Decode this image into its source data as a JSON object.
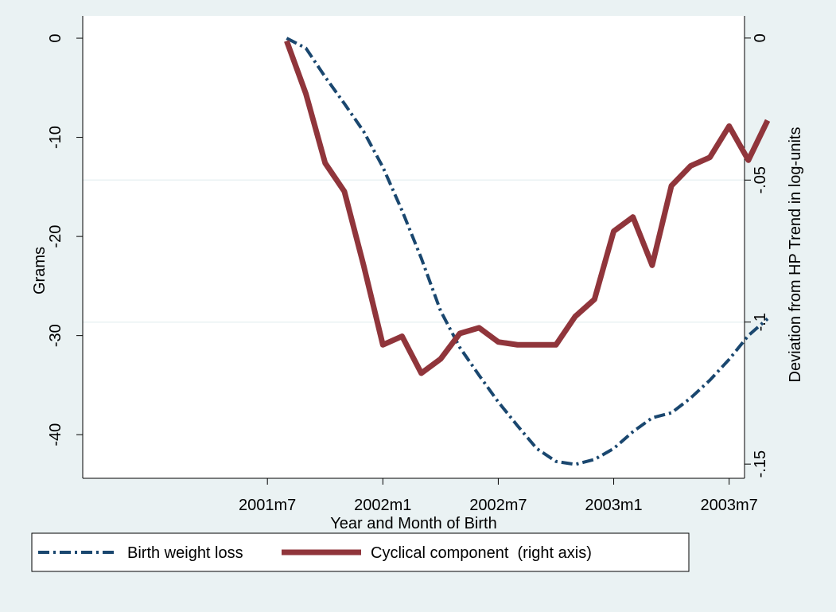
{
  "chart_data": {
    "type": "line",
    "x": [
      499,
      500,
      501,
      502,
      503,
      504,
      505,
      506,
      507,
      508,
      509,
      510,
      511,
      512,
      513,
      514,
      515,
      516,
      517,
      518,
      519,
      520,
      521,
      522,
      523,
      524
    ],
    "xlim": [
      488.4,
      522.8
    ],
    "xticks": [
      {
        "value": 498,
        "label": "2001m7"
      },
      {
        "value": 504,
        "label": "2002m1"
      },
      {
        "value": 510,
        "label": "2002m7"
      },
      {
        "value": 516,
        "label": "2003m1"
      },
      {
        "value": 522,
        "label": "2003m7"
      }
    ],
    "xlabel": "Year and Month of Birth",
    "ylabel": "Grams",
    "y2label": "Deviation from HP Trend in log-units",
    "ylim": [
      -44.4,
      2.25
    ],
    "yticks": [
      0,
      -10,
      -20,
      -30,
      -40
    ],
    "y2lim": [
      -0.155,
      0.0078
    ],
    "y2ticks": [
      0,
      {
        "value": -0.05,
        "label": "-.05"
      },
      {
        "value": -0.1,
        "label": "-.1"
      },
      {
        "value": -0.15,
        "label": "-.15"
      }
    ],
    "grid": true,
    "series": [
      {
        "name": "Birth weight loss",
        "color": "#1a476f",
        "values": [
          0,
          -1,
          -3.9,
          -6.6,
          -9.4,
          -13,
          -17.4,
          -22.2,
          -27.5,
          -31.2,
          -34,
          -36.7,
          -39.1,
          -41.4,
          -42.7,
          -43,
          -42.5,
          -41.4,
          -39.7,
          -38.3,
          -37.8,
          -36.3,
          -34.5,
          -32.4,
          -30,
          -28.3
        ]
      },
      {
        "name": "Cyclical component  (right axis)",
        "color": "#90353b",
        "axis": "y2",
        "values": [
          -0.001,
          -0.0196,
          -0.044,
          -0.054,
          -0.08,
          -0.108,
          -0.105,
          -0.118,
          -0.113,
          -0.104,
          -0.102,
          -0.107,
          -0.108,
          -0.108,
          -0.108,
          -0.098,
          -0.092,
          -0.068,
          -0.063,
          -0.08,
          -0.052,
          -0.045,
          -0.042,
          -0.031,
          -0.043,
          -0.029
        ]
      }
    ]
  }
}
